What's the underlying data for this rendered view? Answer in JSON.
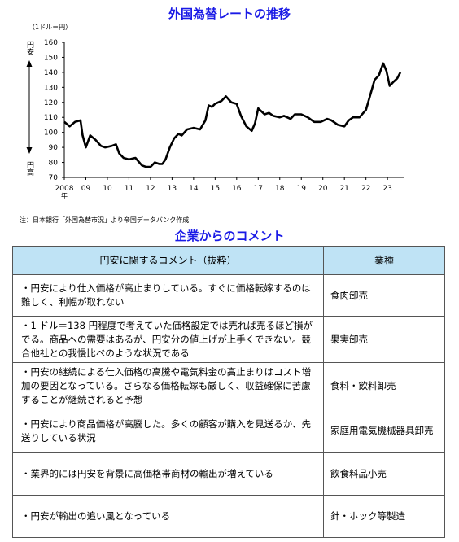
{
  "chart_title": "外国為替レートの推移",
  "comments_title": "企業からのコメント",
  "note": "注：日本銀行「外国為替市況」より帝国データバンク作成",
  "chart_data": {
    "type": "line",
    "title": "外国為替レートの推移",
    "unit_label": "（1ドル＝円）",
    "yaxis_top_label": "円安",
    "yaxis_bottom_label": "円高",
    "year_suffix": "年",
    "ylim": [
      70,
      160
    ],
    "yticks": [
      70,
      80,
      90,
      100,
      110,
      120,
      130,
      140,
      150,
      160
    ],
    "xlim": [
      2008.0,
      2023.75
    ],
    "xticks": [
      {
        "x": 2008.0,
        "label": "2008"
      },
      {
        "x": 2009.0,
        "label": "09"
      },
      {
        "x": 2010.0,
        "label": "10"
      },
      {
        "x": 2011.0,
        "label": "11"
      },
      {
        "x": 2012.0,
        "label": "12"
      },
      {
        "x": 2013.0,
        "label": "13"
      },
      {
        "x": 2014.0,
        "label": "14"
      },
      {
        "x": 2015.0,
        "label": "15"
      },
      {
        "x": 2016.0,
        "label": "16"
      },
      {
        "x": 2017.0,
        "label": "17"
      },
      {
        "x": 2018.0,
        "label": "18"
      },
      {
        "x": 2019.0,
        "label": "19"
      },
      {
        "x": 2020.0,
        "label": "20"
      },
      {
        "x": 2021.0,
        "label": "21"
      },
      {
        "x": 2022.0,
        "label": "22"
      },
      {
        "x": 2023.0,
        "label": "23"
      }
    ],
    "x": [
      2008.0,
      2008.25,
      2008.5,
      2008.75,
      2008.85,
      2009.0,
      2009.2,
      2009.45,
      2009.7,
      2009.9,
      2010.2,
      2010.4,
      2010.55,
      2010.75,
      2011.0,
      2011.3,
      2011.6,
      2011.8,
      2012.0,
      2012.2,
      2012.4,
      2012.55,
      2012.7,
      2012.9,
      2013.1,
      2013.3,
      2013.45,
      2013.7,
      2014.0,
      2014.3,
      2014.55,
      2014.7,
      2014.85,
      2015.0,
      2015.3,
      2015.5,
      2015.75,
      2016.0,
      2016.2,
      2016.45,
      2016.7,
      2016.85,
      2017.0,
      2017.3,
      2017.5,
      2017.7,
      2018.0,
      2018.2,
      2018.5,
      2018.7,
      2019.0,
      2019.3,
      2019.6,
      2019.9,
      2020.2,
      2020.4,
      2020.7,
      2021.0,
      2021.2,
      2021.4,
      2021.7,
      2022.0,
      2022.2,
      2022.4,
      2022.6,
      2022.8,
      2022.95,
      2023.1,
      2023.3,
      2023.45,
      2023.6
    ],
    "values": [
      107,
      104,
      107,
      108,
      98,
      90,
      98,
      95,
      91,
      90,
      91,
      92,
      86,
      83,
      82,
      83,
      78,
      77,
      77,
      80,
      79,
      79,
      82,
      90,
      96,
      99,
      98,
      102,
      103,
      102,
      108,
      118,
      117,
      119,
      121,
      124,
      120,
      119,
      111,
      104,
      101,
      106,
      116,
      112,
      113,
      111,
      110,
      111,
      109,
      112,
      112,
      110,
      107,
      107,
      109,
      108,
      105,
      104,
      108,
      110,
      110,
      115,
      125,
      135,
      138,
      146,
      141,
      131,
      134,
      136,
      140
    ]
  },
  "table": {
    "headers": [
      "円安に関するコメント（抜粋）",
      "業種"
    ],
    "rows": [
      {
        "comment": "・円安により仕入価格が高止まりしている。すぐに価格転嫁するのは難しく、利幅が取れない",
        "industry": "食肉卸売"
      },
      {
        "comment": "・1 ドル＝138 円程度で考えていた価格設定では売れば売るほど損がでる。商品への需要はあるが、円安分の値上げが上手くできない。競合他社との我慢比べのような状況である",
        "industry": "果実卸売"
      },
      {
        "comment": "・円安の継続による仕入価格の高騰や電気料金の高止まりはコスト増加の要因となっている。さらなる価格転嫁も厳しく、収益確保に苦慮することが継続されると予想",
        "industry": "食料・飲料卸売"
      },
      {
        "comment": "・円安により商品価格が高騰した。多くの顧客が購入を見送るか、先送りしている状況",
        "industry": "家庭用電気機械器具卸売"
      },
      {
        "comment": "・業界的には円安を背景に高価格帯商材の輸出が増えている",
        "industry": "飲食料品小売"
      },
      {
        "comment": "・円安が輸出の追い風となっている",
        "industry": "針・ホック等製造"
      }
    ]
  }
}
